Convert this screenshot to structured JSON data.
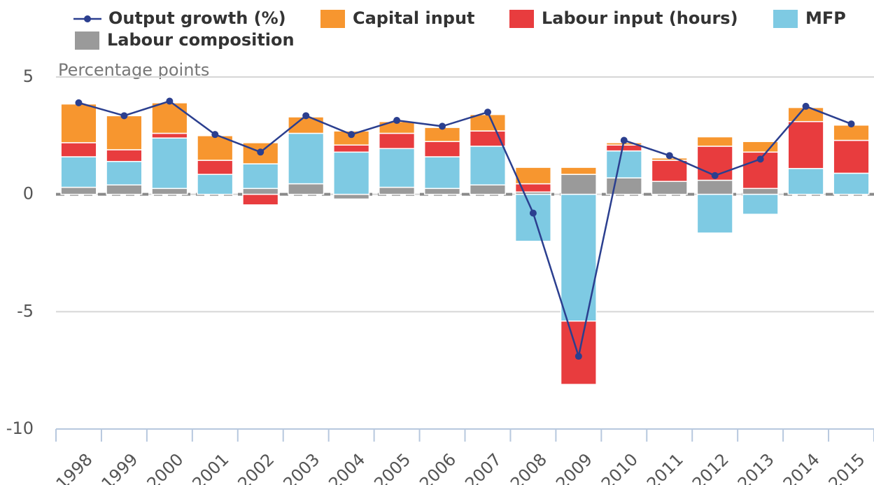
{
  "chart_data": {
    "type": "bar",
    "stacked": true,
    "y_label": "Percentage points",
    "categories": [
      "1998",
      "1999",
      "2000",
      "2001",
      "2002",
      "2003",
      "2004",
      "2005",
      "2006",
      "2007",
      "2008",
      "2009",
      "2010",
      "2011",
      "2012",
      "2013",
      "2014",
      "2015"
    ],
    "series": [
      {
        "name": "Output growth (%)",
        "type": "line",
        "color": "#2b3f8f",
        "values": [
          3.9,
          3.35,
          3.97,
          2.55,
          1.8,
          3.35,
          2.55,
          3.15,
          2.9,
          3.5,
          -0.8,
          -6.9,
          2.3,
          1.65,
          0.8,
          1.5,
          3.75,
          3.0
        ]
      },
      {
        "name": "Capital input",
        "color": "#f7962f",
        "values": [
          1.65,
          1.45,
          1.3,
          1.05,
          0.9,
          0.7,
          0.6,
          0.5,
          0.6,
          0.7,
          0.7,
          0.3,
          0.1,
          0.1,
          0.4,
          0.45,
          0.6,
          0.65
        ]
      },
      {
        "name": "Labour input (hours)",
        "color": "#e83c3e",
        "values": [
          0.6,
          0.5,
          0.2,
          0.6,
          -0.45,
          0,
          0.3,
          0.65,
          0.65,
          0.65,
          0.35,
          -2.7,
          0.25,
          0.9,
          1.45,
          1.55,
          2.0,
          1.4
        ]
      },
      {
        "name": "MFP",
        "color": "#7ecae3",
        "values": [
          1.3,
          1.0,
          2.15,
          0.85,
          1.05,
          2.15,
          1.8,
          1.65,
          1.35,
          1.65,
          -2.0,
          -5.4,
          1.15,
          0,
          -1.65,
          -0.85,
          1.1,
          0.9
        ]
      },
      {
        "name": "Labour composition",
        "color": "#9a9a9a",
        "values": [
          0.3,
          0.4,
          0.25,
          0,
          0.25,
          0.45,
          -0.2,
          0.3,
          0.25,
          0.4,
          0.1,
          0.85,
          0.7,
          0.55,
          0.6,
          0.25,
          0,
          0
        ]
      }
    ],
    "ylim": [
      -10,
      5
    ],
    "yticks": [
      -10,
      -5,
      0,
      5
    ],
    "grid": true
  }
}
